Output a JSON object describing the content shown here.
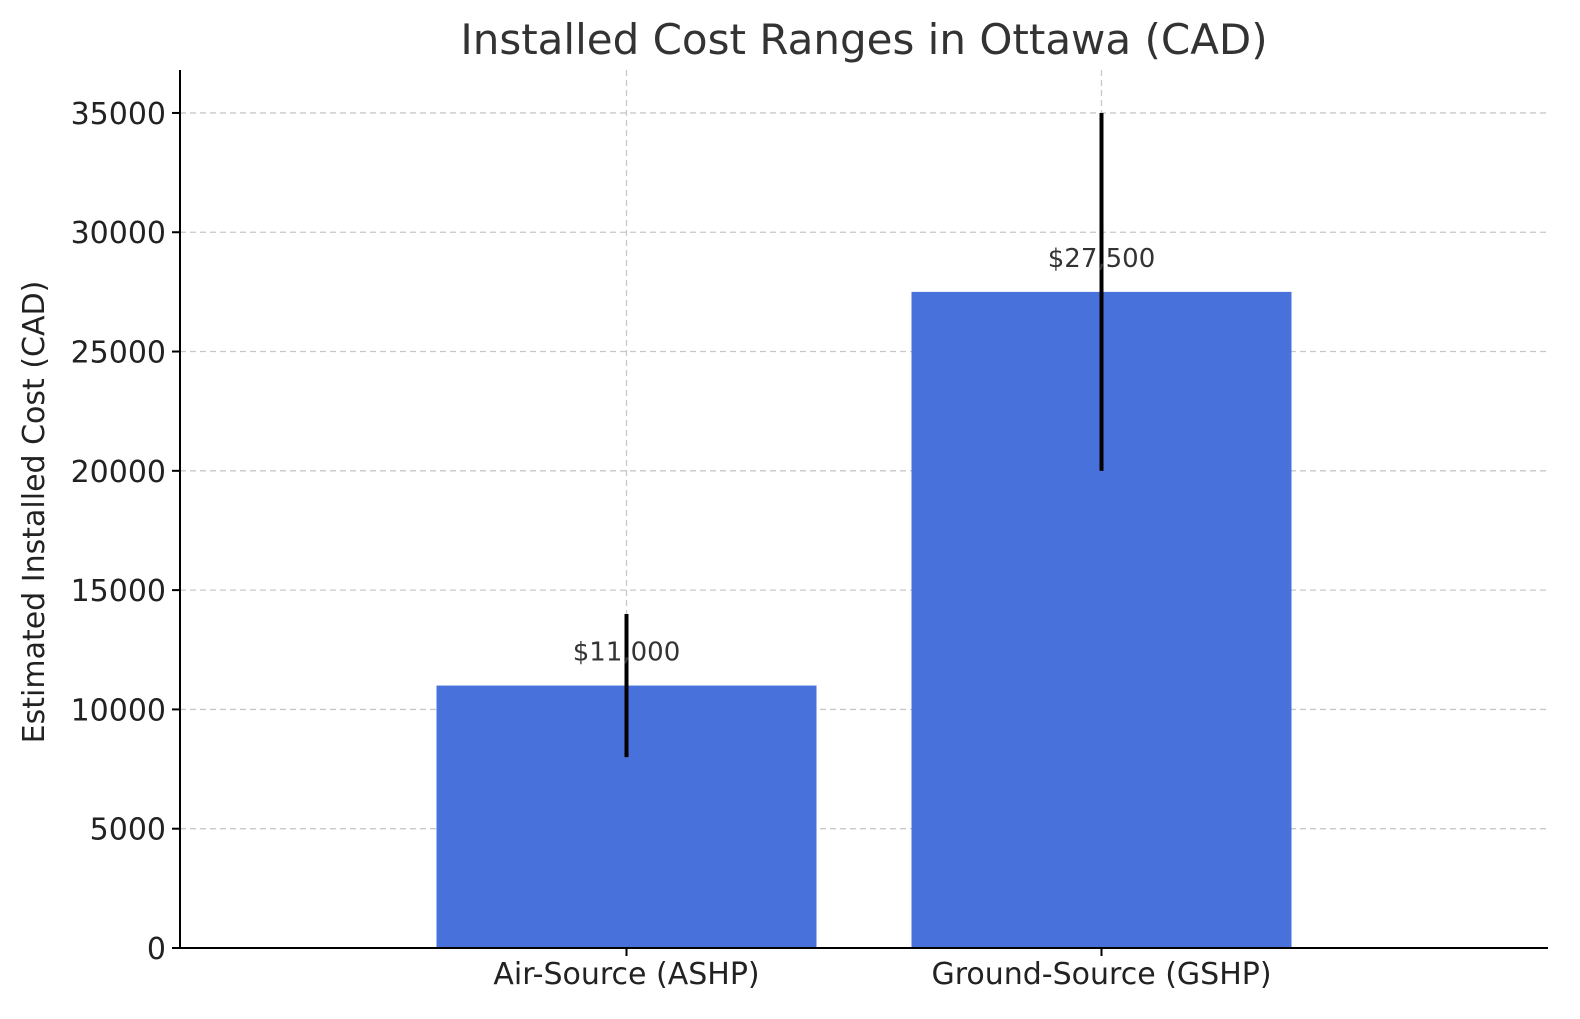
{
  "chart_data": {
    "type": "bar",
    "title": "Installed Cost Ranges in Ottawa (CAD)",
    "xlabel": "",
    "ylabel": "Estimated Installed Cost (CAD)",
    "categories": [
      "Air-Source (ASHP)",
      "Ground-Source (GSHP)"
    ],
    "values": [
      11000,
      27500
    ],
    "ranges": [
      [
        8000,
        14000
      ],
      [
        20000,
        35000
      ]
    ],
    "data_labels": [
      "$11,000",
      "$27,500"
    ],
    "ylim": [
      0,
      36800
    ],
    "yticks": [
      0,
      5000,
      10000,
      15000,
      20000,
      25000,
      30000,
      35000
    ],
    "grid": true,
    "bar_color": "#4871db",
    "errorbar_color": "#000000"
  }
}
